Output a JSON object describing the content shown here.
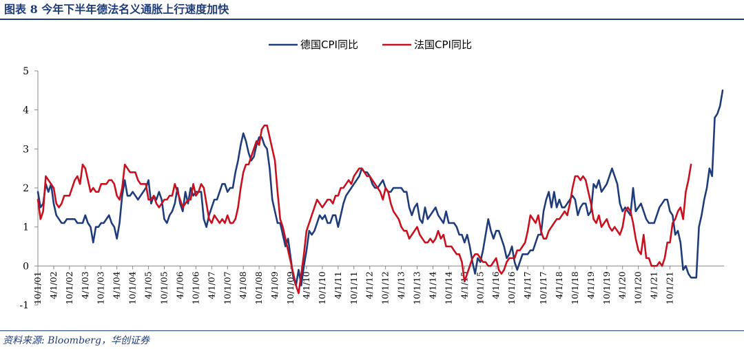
{
  "header": {
    "title": "图表 8 今年下半年德法名义通胀上行速度加快"
  },
  "footer": {
    "source": "资料来源: Bloomberg，华创证券"
  },
  "colors": {
    "germany": "#1f3c7a",
    "france": "#c8101e",
    "accent": "#1f3c7a"
  },
  "chart_data": {
    "type": "line",
    "title": "",
    "xlabel": "",
    "ylabel": "",
    "ylim": [
      -1,
      5
    ],
    "yticks": [
      -1,
      0,
      1,
      2,
      3,
      4,
      5
    ],
    "x_tick_labels": [
      "10/1/01",
      "4/1/02",
      "10/1/02",
      "4/1/03",
      "10/1/03",
      "4/1/04",
      "10/1/04",
      "4/1/05",
      "10/1/05",
      "4/1/06",
      "10/1/06",
      "4/1/07",
      "10/1/07",
      "4/1/08",
      "10/1/08",
      "4/1/09",
      "10/1/09",
      "4/1/10",
      "10/1/10",
      "4/1/11",
      "10/1/11",
      "4/1/12",
      "10/1/12",
      "4/1/13",
      "10/1/13",
      "4/1/14",
      "10/1/14",
      "4/1/15",
      "10/1/15",
      "4/1/16",
      "10/1/16",
      "4/1/17",
      "10/1/17",
      "4/1/18",
      "10/1/18",
      "4/1/19",
      "10/1/19",
      "4/1/20",
      "10/1/20",
      "4/1/21",
      "10/1/21"
    ],
    "x_start": "2001-10",
    "frequency": "monthly",
    "legend_position": "top-center",
    "grid": false,
    "series": [
      {
        "name": "德国CPI同比",
        "color": "#1f3c7a",
        "values": [
          1.9,
          1.5,
          1.6,
          2.1,
          1.9,
          2.1,
          1.6,
          1.3,
          1.2,
          1.1,
          1.1,
          1.2,
          1.2,
          1.2,
          1.2,
          1.1,
          1.1,
          1.1,
          1.3,
          1.1,
          1.0,
          0.6,
          1.0,
          1.0,
          1.1,
          1.1,
          1.2,
          1.3,
          1.1,
          1.0,
          0.7,
          1.1,
          1.8,
          2.2,
          1.8,
          1.8,
          1.9,
          1.8,
          1.7,
          1.8,
          1.9,
          2.0,
          2.2,
          1.6,
          1.8,
          1.7,
          1.9,
          1.7,
          1.2,
          1.1,
          1.3,
          1.4,
          1.6,
          2.0,
          1.6,
          1.4,
          1.9,
          1.6,
          2.0,
          1.8,
          1.9,
          1.9,
          1.9,
          1.2,
          1.0,
          1.3,
          1.5,
          1.7,
          1.7,
          1.9,
          2.1,
          2.1,
          1.9,
          2.0,
          2.0,
          2.4,
          2.7,
          3.1,
          3.4,
          3.2,
          2.9,
          2.7,
          2.8,
          3.1,
          3.3,
          3.3,
          3.1,
          3.0,
          2.5,
          1.7,
          1.4,
          1.1,
          1.1,
          0.8,
          0.5,
          0.7,
          0.2,
          -0.3,
          -0.5,
          -0.1,
          -0.5,
          0.0,
          0.4,
          0.9,
          0.8,
          0.9,
          1.1,
          1.3,
          1.2,
          1.3,
          1.1,
          1.1,
          1.3,
          1.3,
          1.0,
          1.3,
          1.6,
          1.8,
          1.9,
          2.0,
          2.1,
          2.2,
          2.3,
          2.5,
          2.4,
          2.4,
          2.3,
          2.1,
          2.0,
          2.0,
          2.1,
          2.2,
          2.0,
          1.9,
          1.9,
          2.0,
          2.0,
          2.0,
          2.0,
          1.9,
          1.9,
          1.5,
          1.3,
          1.5,
          1.6,
          1.2,
          1.1,
          1.5,
          1.2,
          1.3,
          1.4,
          1.5,
          1.3,
          1.2,
          1.1,
          1.4,
          1.1,
          1.1,
          1.1,
          1.0,
          0.8,
          0.8,
          0.6,
          0.8,
          0.5,
          0.1,
          -0.2,
          0.2,
          0.1,
          0.4,
          0.8,
          1.2,
          0.9,
          0.7,
          0.9,
          0.9,
          0.7,
          0.5,
          0.2,
          0.3,
          0.5,
          0.1,
          -0.1,
          0.1,
          0.3,
          0.3,
          0.3,
          0.4,
          0.4,
          0.6,
          0.8,
          0.8,
          1.4,
          1.7,
          1.9,
          1.5,
          1.9,
          1.5,
          1.7,
          1.5,
          1.5,
          1.6,
          1.7,
          1.8,
          1.7,
          1.3,
          1.5,
          1.6,
          1.6,
          1.3,
          1.4,
          2.1,
          2.0,
          2.2,
          1.9,
          2.0,
          2.1,
          2.3,
          2.5,
          2.3,
          2.1,
          1.6,
          1.4,
          1.5,
          1.4,
          1.3,
          2.0,
          1.4,
          1.5,
          1.6,
          1.4,
          1.2,
          1.1,
          1.1,
          1.1,
          1.3,
          1.5,
          1.6,
          1.7,
          1.7,
          1.4,
          1.3,
          0.8,
          0.9,
          0.6,
          -0.1,
          0.0,
          -0.2,
          -0.3,
          -0.3,
          -0.3,
          1.0,
          1.3,
          1.7,
          2.0,
          2.5,
          2.3,
          3.8,
          3.9,
          4.1,
          4.5
        ]
      },
      {
        "name": "法国CPI同比",
        "color": "#c8101e",
        "values": [
          1.7,
          1.2,
          1.4,
          2.3,
          2.2,
          2.1,
          2.0,
          1.6,
          1.5,
          1.6,
          1.8,
          1.8,
          1.8,
          2.0,
          2.2,
          2.3,
          2.1,
          2.6,
          2.5,
          2.2,
          1.9,
          2.0,
          1.9,
          1.9,
          2.1,
          2.1,
          2.1,
          2.2,
          2.2,
          2.1,
          1.8,
          1.7,
          2.0,
          2.6,
          2.5,
          2.4,
          2.4,
          2.4,
          2.2,
          2.1,
          2.1,
          2.1,
          1.7,
          1.7,
          1.8,
          1.6,
          1.5,
          1.6,
          1.7,
          1.7,
          1.8,
          1.8,
          2.1,
          1.9,
          1.7,
          1.5,
          1.6,
          1.7,
          1.7,
          2.1,
          1.8,
          1.9,
          2.1,
          2.0,
          1.6,
          1.2,
          1.1,
          1.3,
          1.2,
          1.1,
          1.2,
          1.1,
          1.3,
          1.1,
          1.1,
          1.2,
          1.5,
          2.0,
          2.4,
          2.6,
          2.6,
          2.8,
          3.0,
          3.2,
          3.1,
          3.5,
          3.6,
          3.6,
          3.3,
          3.0,
          2.7,
          1.9,
          1.2,
          1.0,
          0.7,
          0.4,
          0.1,
          -0.2,
          -0.5,
          -0.7,
          -0.2,
          0.3,
          0.9,
          1.1,
          1.3,
          1.5,
          1.7,
          1.6,
          1.5,
          1.6,
          1.7,
          1.7,
          1.6,
          1.8,
          1.8,
          2.0,
          2.0,
          2.1,
          2.2,
          2.1,
          2.3,
          2.4,
          2.5,
          2.5,
          2.4,
          2.3,
          2.3,
          2.2,
          2.1,
          2.0,
          1.9,
          1.7,
          2.0,
          1.9,
          1.6,
          1.4,
          1.3,
          1.2,
          1.0,
          0.9,
          0.9,
          0.7,
          0.8,
          0.9,
          1.0,
          0.8,
          0.7,
          0.6,
          0.6,
          0.7,
          0.6,
          0.7,
          0.9,
          0.7,
          0.8,
          0.5,
          0.5,
          0.5,
          0.4,
          0.3,
          0.3,
          0.1,
          -0.4,
          -0.2,
          0.0,
          0.2,
          0.3,
          0.3,
          0.2,
          0.1,
          0.1,
          0.0,
          0.0,
          0.1,
          0.2,
          -0.1,
          -0.2,
          -0.1,
          0.1,
          0.2,
          0.2,
          0.2,
          0.4,
          0.4,
          0.5,
          0.6,
          0.9,
          1.3,
          1.2,
          1.1,
          1.3,
          0.9,
          0.7,
          0.7,
          0.9,
          1.0,
          1.1,
          1.2,
          1.2,
          1.3,
          1.4,
          1.3,
          1.6,
          2.0,
          2.3,
          2.3,
          2.2,
          2.3,
          2.2,
          1.9,
          1.6,
          1.2,
          1.1,
          1.3,
          1.0,
          1.1,
          1.2,
          1.0,
          0.9,
          1.0,
          0.9,
          0.8,
          1.0,
          1.4,
          1.5,
          1.4,
          1.1,
          0.7,
          0.4,
          0.3,
          0.8,
          0.2,
          0.2,
          0.0,
          0.0,
          0.0,
          0.1,
          0.0,
          0.2,
          0.6,
          0.6,
          1.1,
          1.2,
          1.4,
          1.5,
          1.2,
          1.9,
          2.2,
          2.6
        ]
      }
    ]
  }
}
